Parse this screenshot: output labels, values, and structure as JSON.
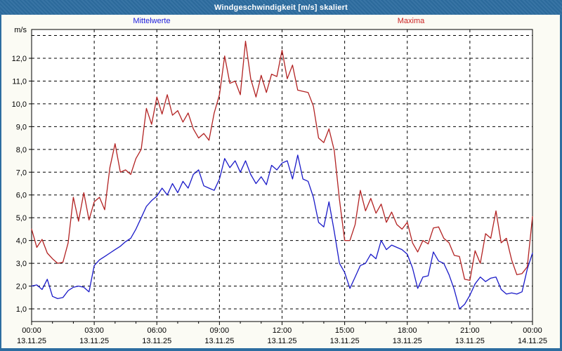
{
  "window": {
    "title": "Windgeschwindigkeit [m/s] skaliert"
  },
  "legend": {
    "mean_label": "Mittelwerte",
    "max_label": "Maxima"
  },
  "colors": {
    "title_bar": "#2d6da0",
    "window_border": "#2d6da0",
    "background": "#fbfbf4",
    "plot_background": "#ffffff",
    "plot_frame": "#000000",
    "grid": "#000000",
    "axis_text": "#000000",
    "mean_line": "#1a1ac8",
    "max_line": "#b22222",
    "mean_label": "#2020dd",
    "max_label": "#cc2222"
  },
  "chart_data": {
    "type": "line",
    "title": "Windgeschwindigkeit [m/s] skaliert",
    "grid": true,
    "legend_position": "top",
    "y_axis": {
      "unit_label": "m/s",
      "min": 0.45,
      "max": 13.25,
      "tick_min": 1.0,
      "tick_max": 12.0,
      "tick_step": 1.0,
      "grid_line_max": 13.0,
      "tick_format": "decimal-comma-one-digit"
    },
    "x_axis": {
      "hours_total": 24,
      "major_tick_hours": 3,
      "minor_tick_hours": 1,
      "tick_labels": [
        {
          "time": "00:00",
          "date": "13.11.25"
        },
        {
          "time": "03:00",
          "date": "13.11.25"
        },
        {
          "time": "06:00",
          "date": "13.11.25"
        },
        {
          "time": "09:00",
          "date": "13.11.25"
        },
        {
          "time": "12:00",
          "date": "13.11.25"
        },
        {
          "time": "15:00",
          "date": "13.11.25"
        },
        {
          "time": "18:00",
          "date": "13.11.25"
        },
        {
          "time": "21:00",
          "date": "13.11.25"
        },
        {
          "time": "00:00",
          "date": "14.11.25"
        }
      ]
    },
    "sample_interval_hours": 0.25,
    "series": [
      {
        "name": "Mittelwerte",
        "color_key": "mean_line",
        "values": [
          2.0,
          2.05,
          1.85,
          2.3,
          1.55,
          1.45,
          1.5,
          1.8,
          1.95,
          2.0,
          1.95,
          1.75,
          2.9,
          3.15,
          3.3,
          3.45,
          3.6,
          3.75,
          3.95,
          4.1,
          4.5,
          5.0,
          5.5,
          5.75,
          5.95,
          6.3,
          6.0,
          6.5,
          6.1,
          6.6,
          6.3,
          6.9,
          7.1,
          6.4,
          6.3,
          6.2,
          6.7,
          7.6,
          7.2,
          7.5,
          7.0,
          7.5,
          6.9,
          6.5,
          6.8,
          6.45,
          7.3,
          7.1,
          7.4,
          7.5,
          6.7,
          7.75,
          6.7,
          6.6,
          5.9,
          4.8,
          4.6,
          5.7,
          4.4,
          3.0,
          2.6,
          1.9,
          2.4,
          2.9,
          3.0,
          3.4,
          3.2,
          4.0,
          3.6,
          3.8,
          3.7,
          3.6,
          3.4,
          2.8,
          1.9,
          2.4,
          2.45,
          3.5,
          3.1,
          3.0,
          2.5,
          1.85,
          1.0,
          1.2,
          1.6,
          2.1,
          2.4,
          2.2,
          2.35,
          2.4,
          1.85,
          1.65,
          1.7,
          1.65,
          1.75,
          2.75,
          3.45
        ]
      },
      {
        "name": "Maxima",
        "color_key": "max_line",
        "values": [
          4.5,
          3.7,
          4.05,
          3.45,
          3.2,
          3.0,
          3.05,
          3.9,
          5.9,
          4.85,
          6.1,
          4.9,
          5.7,
          5.9,
          5.35,
          7.2,
          8.25,
          7.0,
          7.1,
          6.9,
          7.6,
          8.0,
          9.8,
          9.1,
          10.3,
          9.55,
          10.4,
          9.5,
          9.7,
          9.2,
          9.6,
          8.9,
          8.5,
          8.7,
          8.4,
          9.6,
          10.4,
          12.1,
          10.9,
          11.0,
          10.4,
          12.75,
          11.1,
          10.3,
          11.25,
          10.5,
          11.3,
          11.2,
          12.35,
          11.1,
          11.7,
          10.6,
          10.55,
          10.5,
          9.9,
          8.5,
          8.3,
          8.9,
          7.95,
          5.8,
          4.0,
          4.0,
          4.7,
          6.2,
          5.3,
          5.85,
          5.2,
          5.6,
          4.8,
          5.25,
          4.7,
          4.5,
          4.8,
          3.9,
          3.5,
          4.0,
          3.85,
          4.55,
          4.6,
          4.1,
          3.9,
          3.35,
          3.3,
          2.3,
          2.25,
          3.55,
          3.0,
          4.3,
          4.1,
          5.3,
          3.9,
          4.1,
          3.15,
          2.5,
          2.55,
          2.85,
          5.05
        ]
      }
    ]
  }
}
